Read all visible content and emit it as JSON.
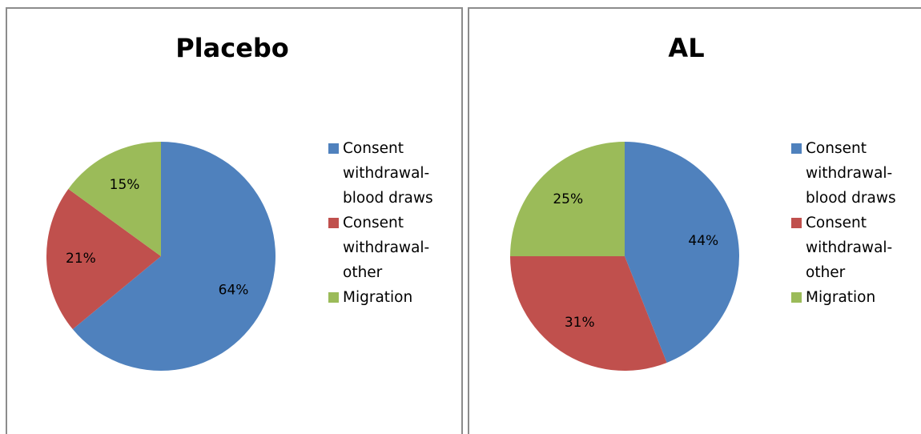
{
  "chart_data": [
    {
      "type": "pie",
      "title": "Placebo",
      "categories": [
        "Consent withdrawal-blood draws",
        "Consent withdrawal-other",
        "Migration"
      ],
      "values": [
        64,
        21,
        15
      ],
      "value_labels": [
        "64%",
        "21%",
        "15%"
      ],
      "colors": [
        "#4f81bd",
        "#c0504d",
        "#9bbb59"
      ],
      "legend": "right"
    },
    {
      "type": "pie",
      "title": "AL",
      "categories": [
        "Consent withdrawal-blood draws",
        "Consent withdrawal-other",
        "Migration"
      ],
      "values": [
        44,
        31,
        25
      ],
      "value_labels": [
        "44%",
        "31%",
        "25%"
      ],
      "colors": [
        "#4f81bd",
        "#c0504d",
        "#9bbb59"
      ],
      "legend": "right"
    }
  ]
}
